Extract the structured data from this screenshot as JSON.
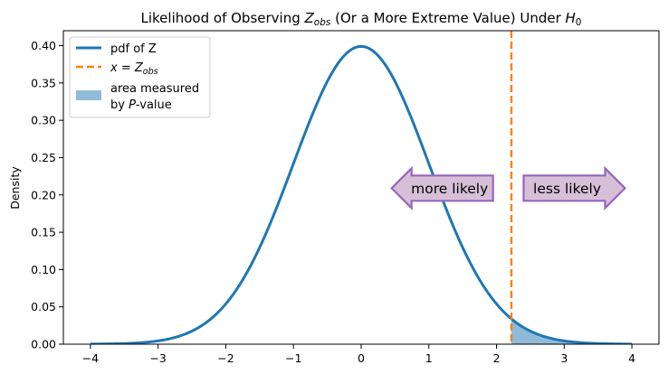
{
  "chart_data": {
    "type": "line",
    "title": {
      "prefix": "Likelihood of Observing ",
      "var": "Z",
      "sub": "obs",
      "middle": " (Or a More Extreme Value) Under ",
      "var2": "H",
      "sub2": "0"
    },
    "xlabel": "",
    "ylabel": "Density",
    "xlim": [
      -4.4,
      4.4
    ],
    "ylim": [
      0,
      0.42
    ],
    "xticks": [
      -4,
      -3,
      -2,
      -1,
      0,
      1,
      2,
      3,
      4
    ],
    "yticks": [
      0.0,
      0.05,
      0.1,
      0.15,
      0.2,
      0.25,
      0.3,
      0.35,
      0.4
    ],
    "xtick_labels": [
      "−4",
      "−3",
      "−2",
      "−1",
      "0",
      "1",
      "2",
      "3",
      "4"
    ],
    "ytick_labels": [
      "0.00",
      "0.05",
      "0.10",
      "0.15",
      "0.20",
      "0.25",
      "0.30",
      "0.35",
      "0.40"
    ],
    "grid": false,
    "legend_placement": "upper-left",
    "series": [
      {
        "name": "pdf of Z",
        "kind": "line",
        "function": "standard-normal-pdf",
        "x_range": [
          -4,
          4
        ],
        "color": "#1f77b4"
      },
      {
        "name": "x = Z_obs",
        "kind": "vertical-dashed-line",
        "x": 2.22,
        "color": "#ff7f0e"
      },
      {
        "name": "area measured by P-value",
        "kind": "filled-area",
        "x_range": [
          2.22,
          4
        ],
        "color": "#1f77b4",
        "alpha": 0.5
      }
    ],
    "legend": {
      "entry1": "pdf of Z",
      "entry2_var": "x",
      "entry2_eq": " = ",
      "entry2_var2": "Z",
      "entry2_sub": "obs",
      "entry3_line1": "area measured",
      "entry3_line2_prefix": "by ",
      "entry3_line2_var": "P",
      "entry3_line2_suffix": "-value"
    },
    "annotations": [
      {
        "text": "more likely",
        "direction": "left",
        "x": 1.2,
        "y": 0.209
      },
      {
        "text": "less likely",
        "direction": "right",
        "x": 3.15,
        "y": 0.209
      }
    ],
    "colors": {
      "pdf": "#1f77b4",
      "zobs": "#ff7f0e",
      "area": "#1f77b4",
      "arrow_fill": "#d8bfd8",
      "arrow_stroke": "#9467bd"
    }
  }
}
